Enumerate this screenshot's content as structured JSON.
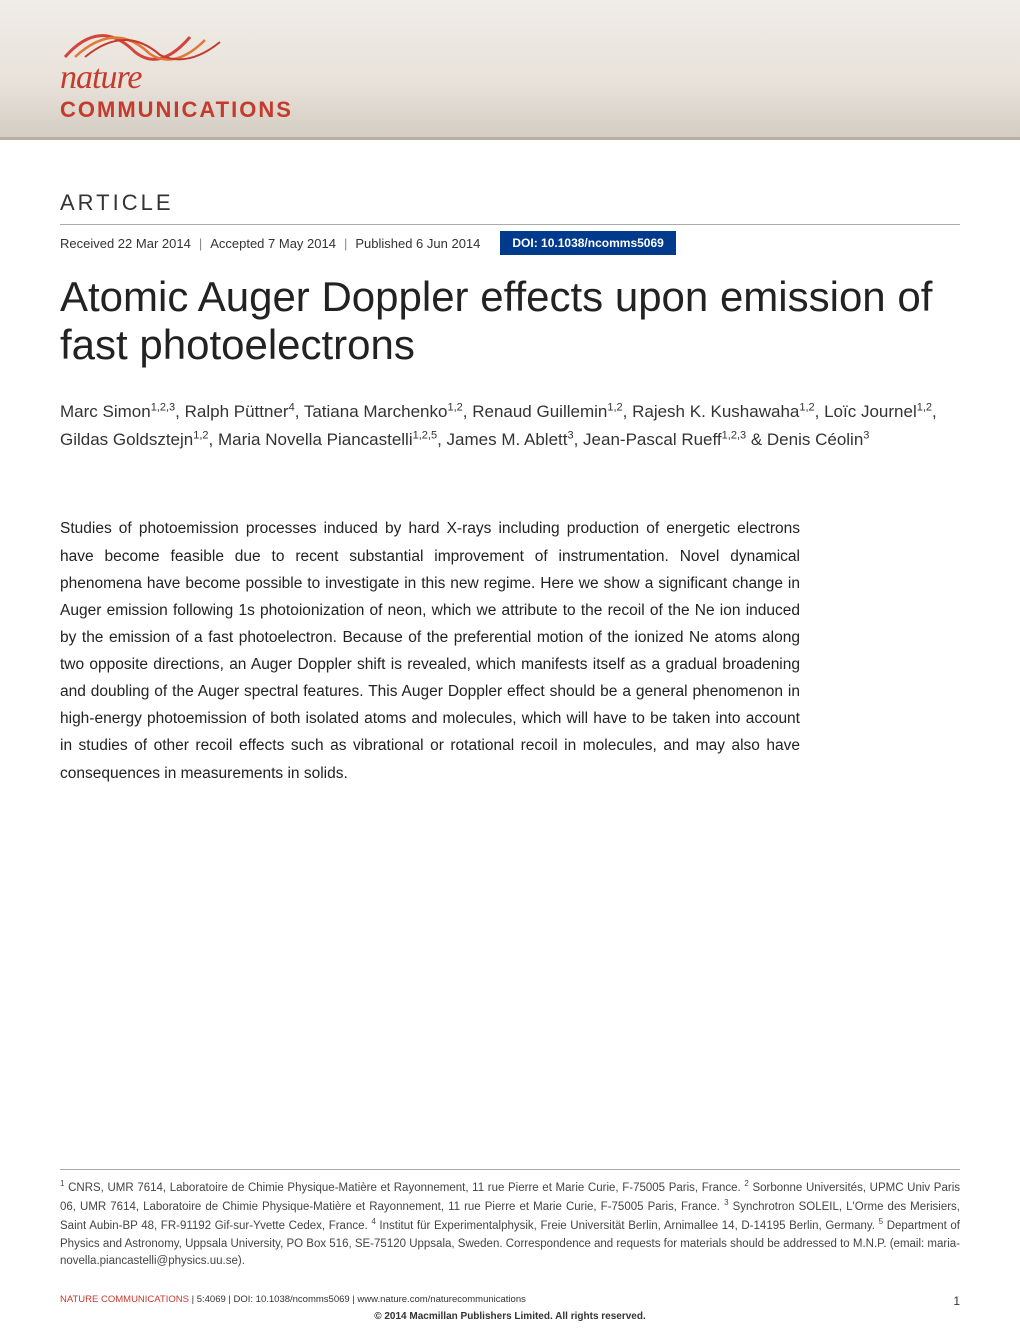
{
  "journal": {
    "logo_top": "nature",
    "logo_bottom": "COMMUNICATIONS",
    "logo_color": "#c43b2d",
    "swoosh_colors": [
      "#d4443a",
      "#e07838",
      "#c43b2d"
    ]
  },
  "header": {
    "background_gradient": [
      "#f0ece8",
      "#e8e2da",
      "#d4cdc4"
    ],
    "border_color": "#b8afa3"
  },
  "article": {
    "label": "ARTICLE",
    "received": "Received 22 Mar 2014",
    "accepted": "Accepted 7 May 2014",
    "published": "Published 6 Jun 2014",
    "doi": "DOI: 10.1038/ncomms5069",
    "doi_bg": "#003a8c",
    "title": "Atomic Auger Doppler effects upon emission of fast photoelectrons",
    "title_fontsize": 42,
    "authors_html": "Marc Simon<sup>1,2,3</sup>, Ralph Püttner<sup>4</sup>, Tatiana Marchenko<sup>1,2</sup>, Renaud Guillemin<sup>1,2</sup>, Rajesh K. Kushawaha<sup>1,2</sup>, Loïc Journel<sup>1,2</sup>, Gildas Goldsztejn<sup>1,2</sup>, Maria Novella Piancastelli<sup>1,2,5</sup>, James M. Ablett<sup>3</sup>, Jean-Pascal Rueff<sup>1,2,3</sup> & Denis Céolin<sup>3</sup>",
    "abstract": "Studies of photoemission processes induced by hard X-rays including production of energetic electrons have become feasible due to recent substantial improvement of instrumentation. Novel dynamical phenomena have become possible to investigate in this new regime. Here we show a significant change in Auger emission following 1s photoionization of neon, which we attribute to the recoil of the Ne ion induced by the emission of a fast photoelectron. Because of the preferential motion of the ionized Ne atoms along two opposite directions, an Auger Doppler shift is revealed, which manifests itself as a gradual broadening and doubling of the Auger spectral features. This Auger Doppler effect should be a general phenomenon in high-energy photoemission of both isolated atoms and molecules, which will have to be taken into account in studies of other recoil effects such as vibrational or rotational recoil in molecules, and may also have consequences in measurements in solids.",
    "abstract_fontsize": 15.5
  },
  "affiliations_html": "<sup>1</sup> CNRS, UMR 7614, Laboratoire de Chimie Physique-Matière et Rayonnement, 11 rue Pierre et Marie Curie, F-75005 Paris, France. <sup>2</sup> Sorbonne Universités, UPMC Univ Paris 06, UMR 7614, Laboratoire de Chimie Physique-Matière et Rayonnement, 11 rue Pierre et Marie Curie, F-75005 Paris, France. <sup>3</sup> Synchrotron SOLEIL, L'Orme des Merisiers, Saint Aubin-BP 48, FR-91192 Gif-sur-Yvette Cedex, France. <sup>4</sup> Institut für Experimentalphysik, Freie Universität Berlin, Arnimallee 14, D-14195 Berlin, Germany. <sup>5</sup> Department of Physics and Astronomy, Uppsala University, PO Box 516, SE-75120 Uppsala, Sweden. Correspondence and requests for materials should be addressed to M.N.P. (email: maria-novella.piancastelli@physics.uu.se).",
  "footer": {
    "citation_journal": "NATURE COMMUNICATIONS",
    "citation_rest": " | 5:4069 | DOI: 10.1038/ncomms5069 | www.nature.com/naturecommunications",
    "page_number": "1",
    "copyright": "© 2014 Macmillan Publishers Limited. All rights reserved."
  }
}
